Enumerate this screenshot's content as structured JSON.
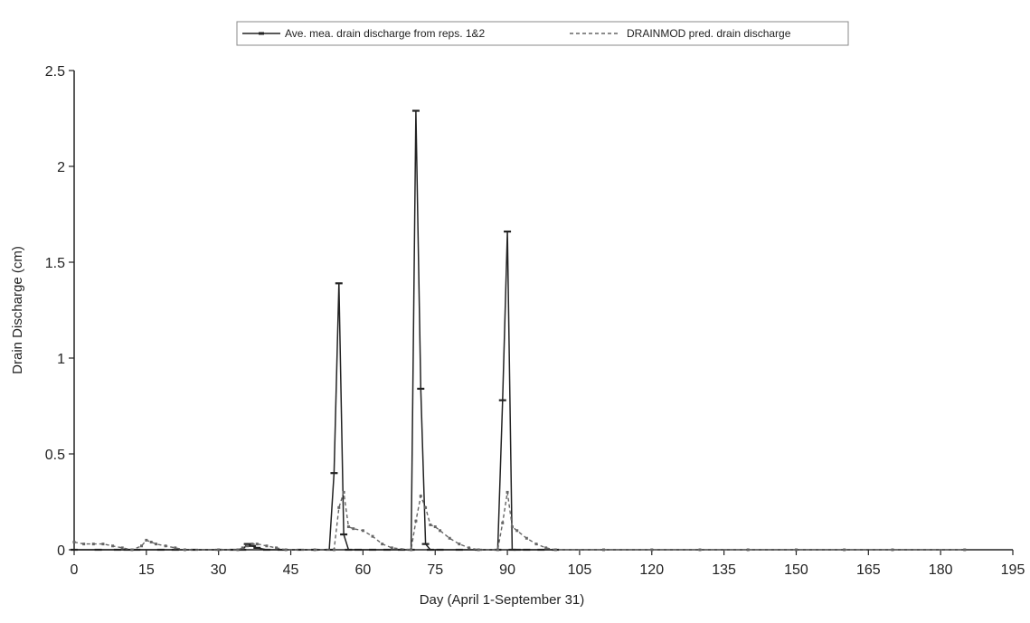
{
  "chart_data": {
    "type": "line",
    "title": "",
    "xlabel": "Day (April 1-September 31)",
    "ylabel": "Drain Discharge (cm)",
    "xlim": [
      0,
      195
    ],
    "ylim": [
      0,
      2.5
    ],
    "x_ticks": [
      "0",
      "15",
      "30",
      "45",
      "60",
      "75",
      "90",
      "105",
      "120",
      "135",
      "150",
      "165",
      "180",
      "195"
    ],
    "y_ticks": [
      "0",
      "0.5",
      "1",
      "1.5",
      "2",
      "2.5"
    ],
    "grid": false,
    "legend_position": "top-center",
    "legend_border": true,
    "series": [
      {
        "name": "Ave. mea. drain discharge from reps. 1&2",
        "style": "solid",
        "color": "#222222",
        "x": [
          0,
          5,
          9,
          11,
          13,
          18,
          21,
          25,
          30,
          33,
          35,
          36,
          37,
          38,
          40,
          43,
          47,
          50,
          53,
          54,
          55,
          56,
          57,
          59,
          62,
          65,
          68,
          70,
          71,
          72,
          73,
          74,
          76,
          80,
          84,
          88,
          89,
          90,
          91,
          92,
          94,
          97,
          100
        ],
        "y": [
          0,
          0,
          0,
          0,
          0,
          0,
          0,
          0,
          0,
          0,
          0,
          0.03,
          0.02,
          0.01,
          0,
          0,
          0,
          0,
          0,
          0.4,
          1.39,
          0.08,
          0,
          0,
          0,
          0,
          0,
          0,
          2.29,
          0.84,
          0.03,
          0,
          0,
          0,
          0,
          0,
          0.78,
          1.66,
          0,
          0,
          0,
          0,
          0
        ]
      },
      {
        "name": "DRAINMOD pred. drain discharge",
        "style": "dashed",
        "color": "#666666",
        "x": [
          0,
          2,
          4,
          6,
          8,
          10,
          12,
          14,
          15,
          16,
          17,
          19,
          21,
          23,
          30,
          34,
          35,
          36,
          37,
          38,
          40,
          42,
          44,
          50,
          54,
          55,
          56,
          57,
          58,
          60,
          62,
          64,
          66,
          70,
          71,
          72,
          73,
          74,
          75,
          76,
          78,
          80,
          82,
          84,
          88,
          89,
          90,
          91,
          92,
          94,
          96,
          98,
          100,
          110,
          120,
          130,
          140,
          150,
          160,
          170,
          185
        ],
        "y": [
          0.04,
          0.03,
          0.03,
          0.03,
          0.02,
          0.01,
          0,
          0.02,
          0.05,
          0.04,
          0.03,
          0.02,
          0.01,
          0,
          0,
          0,
          0.01,
          0.02,
          0.03,
          0.03,
          0.02,
          0.01,
          0,
          0,
          0,
          0.22,
          0.3,
          0.12,
          0.11,
          0.1,
          0.07,
          0.03,
          0.01,
          0,
          0.15,
          0.28,
          0.22,
          0.13,
          0.12,
          0.1,
          0.06,
          0.03,
          0.01,
          0,
          0,
          0.14,
          0.3,
          0.12,
          0.1,
          0.06,
          0.03,
          0.01,
          0,
          0,
          0,
          0,
          0,
          0,
          0,
          0,
          0
        ]
      }
    ]
  }
}
